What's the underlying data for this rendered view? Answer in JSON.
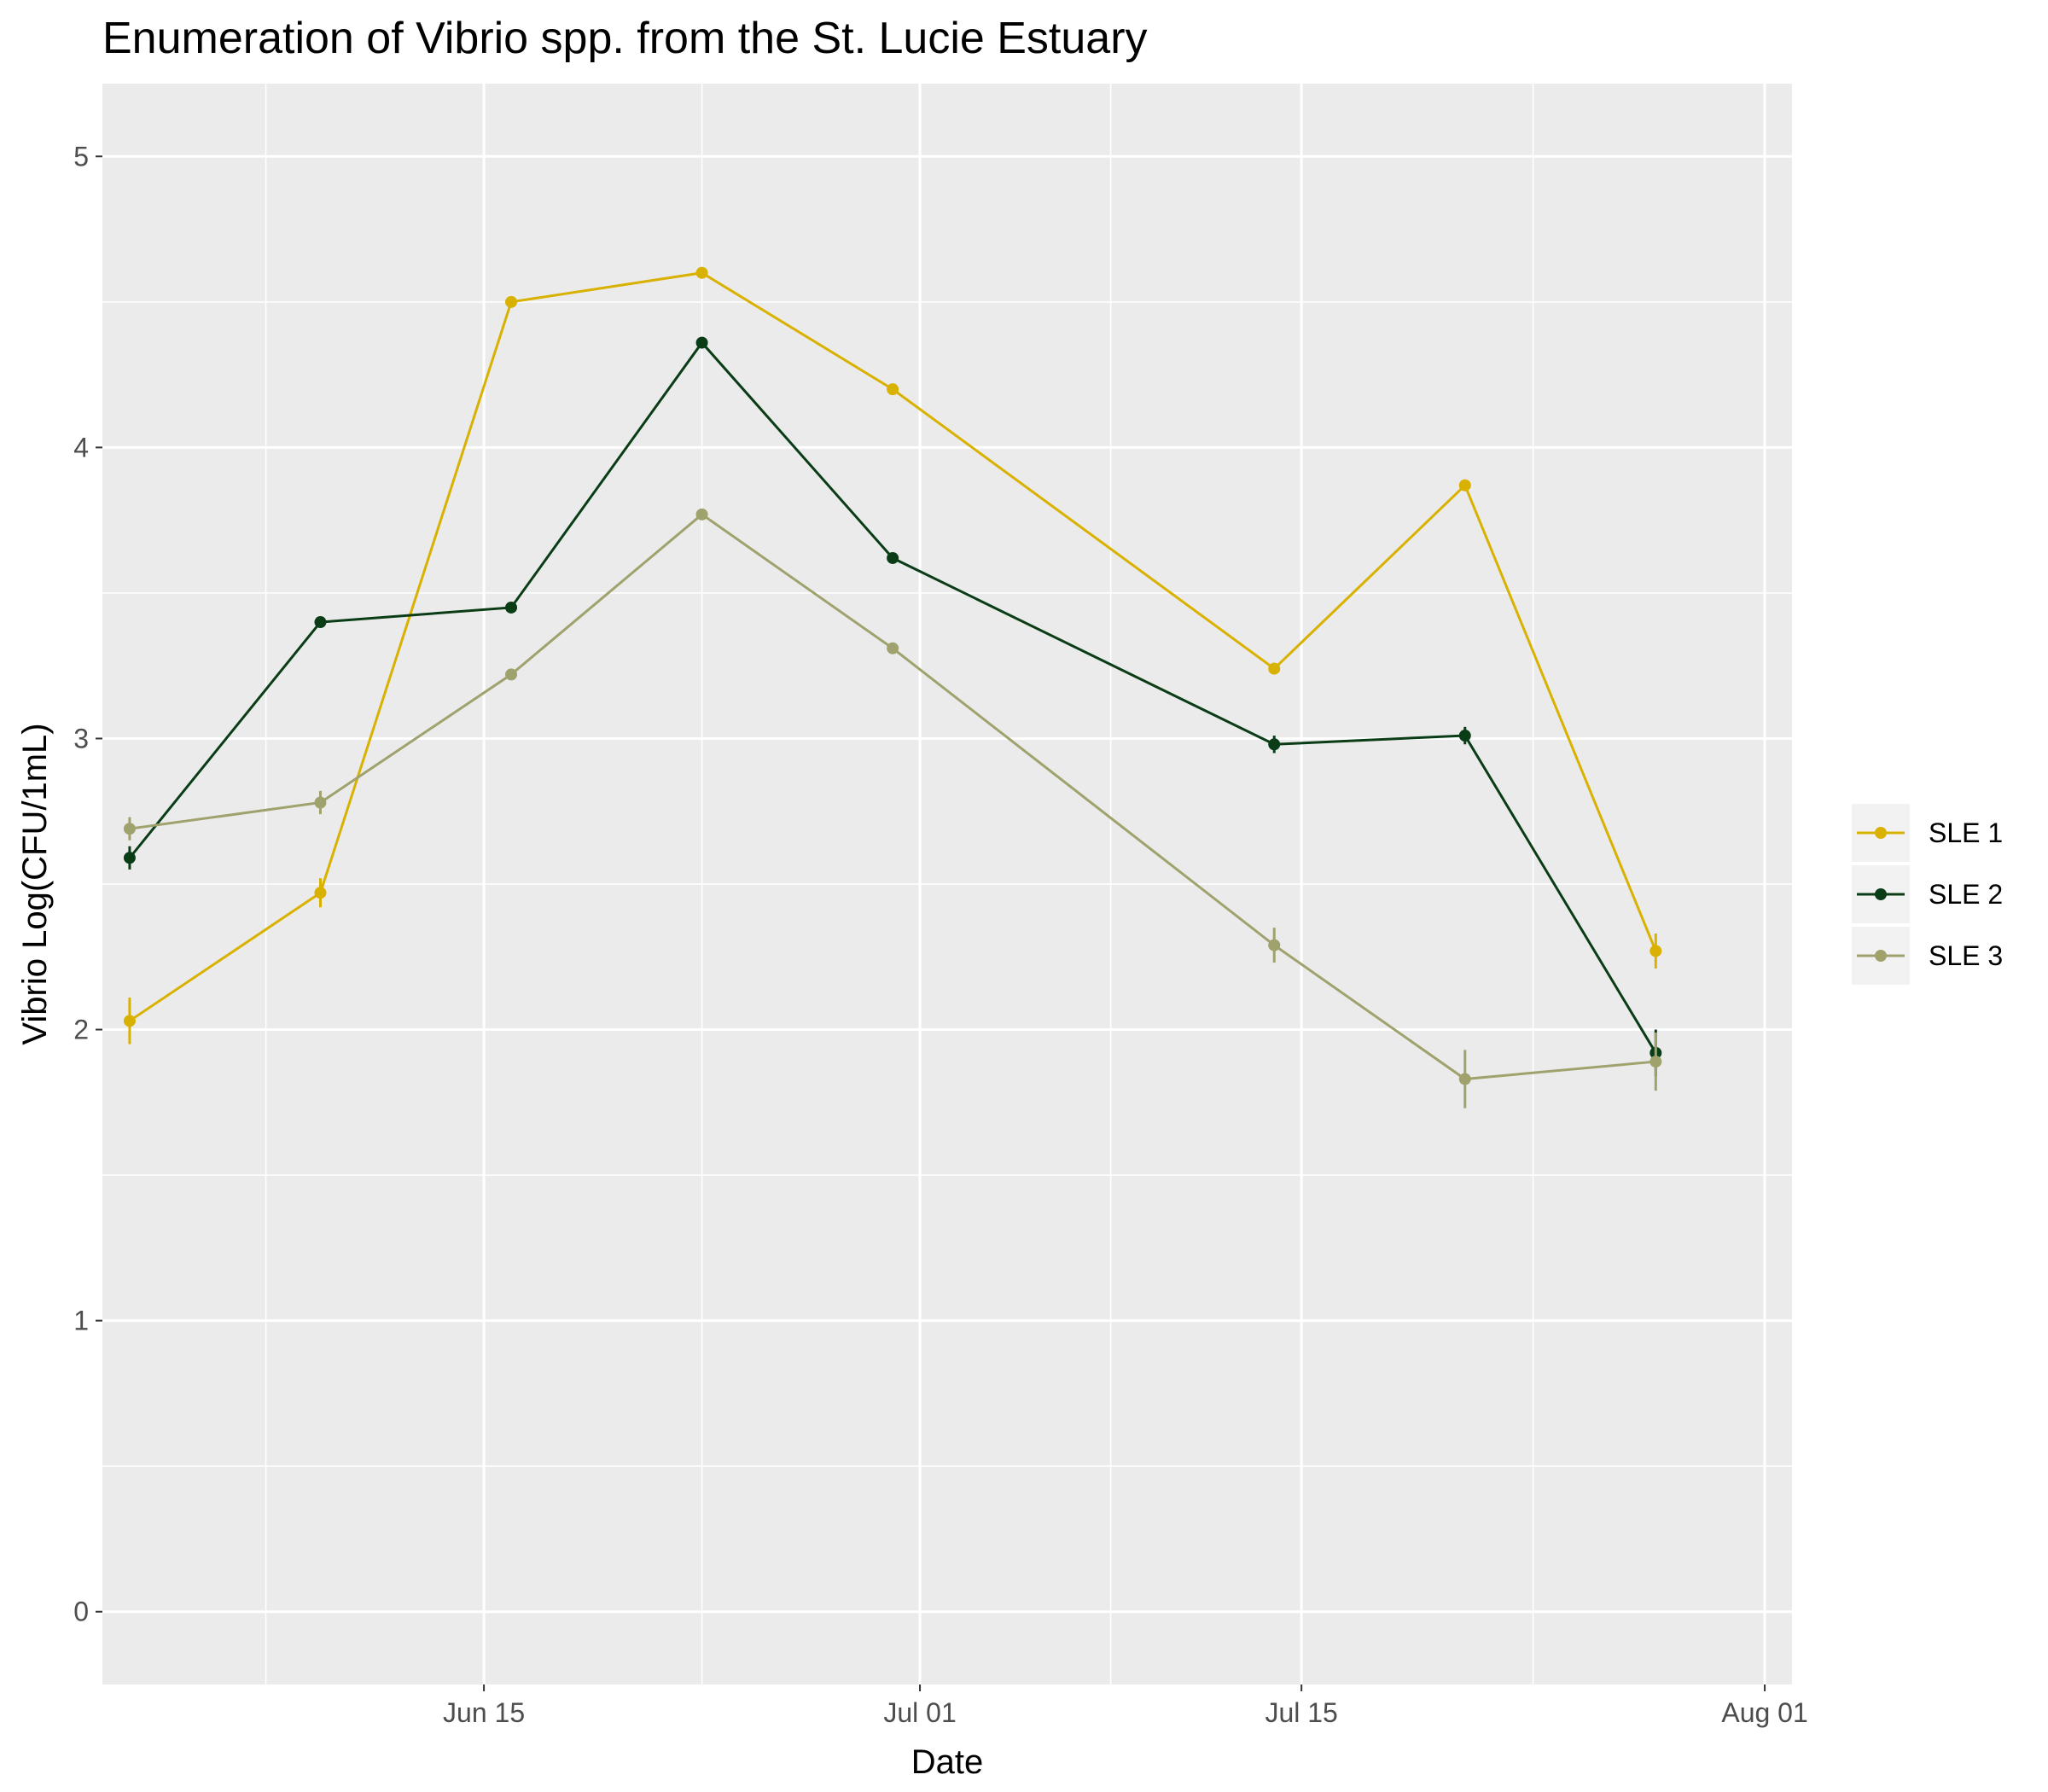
{
  "chart_data": {
    "type": "line",
    "title": "Enumeration of Vibrio spp. from the St. Lucie Estuary",
    "xlabel": "Date",
    "ylabel": "Vibrio Log(CFU/1mL)",
    "x": [
      "2025-06-02",
      "2025-06-09",
      "2025-06-16",
      "2025-06-23",
      "2025-06-30",
      "2025-07-14",
      "2025-07-21",
      "2025-07-28"
    ],
    "x_ticks": [
      {
        "date": "2025-06-15",
        "label": "Jun 15"
      },
      {
        "date": "2025-07-01",
        "label": "Jul 01"
      },
      {
        "date": "2025-07-15",
        "label": "Jul 15"
      },
      {
        "date": "2025-08-01",
        "label": "Aug 01"
      }
    ],
    "y_ticks": [
      0,
      1,
      2,
      3,
      4,
      5
    ],
    "ylim": [
      -0.25,
      5.25
    ],
    "xlim": [
      "2025-06-01",
      "2025-08-02"
    ],
    "grid": true,
    "legend_position": "right",
    "series": [
      {
        "name": "SLE 1",
        "color": "#d9b100",
        "values": [
          2.03,
          2.47,
          4.5,
          4.6,
          4.2,
          3.24,
          3.87,
          2.27
        ],
        "errors": [
          0.08,
          0.05,
          0.01,
          0.01,
          0.01,
          0.02,
          0.01,
          0.06
        ]
      },
      {
        "name": "SLE 2",
        "color": "#0a3d16",
        "values": [
          2.59,
          3.4,
          3.45,
          4.36,
          3.62,
          2.98,
          3.01,
          1.92
        ],
        "errors": [
          0.04,
          0.01,
          0.01,
          0.01,
          0.01,
          0.03,
          0.03,
          0.08
        ]
      },
      {
        "name": "SLE 3",
        "color": "#a0a26e",
        "values": [
          2.69,
          2.78,
          3.22,
          3.77,
          3.31,
          2.29,
          1.83,
          1.89
        ],
        "errors": [
          0.04,
          0.04,
          0.01,
          0.01,
          0.01,
          0.06,
          0.1,
          0.1
        ]
      }
    ]
  }
}
